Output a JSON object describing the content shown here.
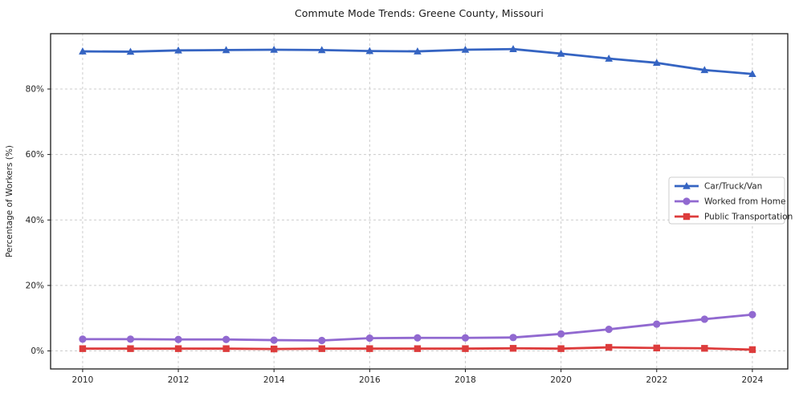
{
  "chart_data": {
    "type": "line",
    "title": "Commute Mode Trends: Greene County, Missouri",
    "xlabel": "",
    "ylabel": "Percentage of Workers (%)",
    "x": [
      2010,
      2011,
      2012,
      2013,
      2014,
      2015,
      2016,
      2017,
      2018,
      2019,
      2020,
      2021,
      2022,
      2023,
      2024
    ],
    "series": [
      {
        "name": "Car/Truck/Van",
        "color": "#3564c2",
        "marker": "triangle",
        "values": [
          91.5,
          91.4,
          91.8,
          91.9,
          92.0,
          91.9,
          91.6,
          91.5,
          92.0,
          92.2,
          90.8,
          89.3,
          88.0,
          85.8,
          84.6
        ]
      },
      {
        "name": "Worked from Home",
        "color": "#9169d0",
        "marker": "circle",
        "values": [
          3.6,
          3.6,
          3.5,
          3.5,
          3.3,
          3.2,
          3.9,
          4.0,
          4.0,
          4.1,
          5.2,
          6.6,
          8.2,
          9.7,
          11.1
        ]
      },
      {
        "name": "Public Transportation",
        "color": "#dd3c3c",
        "marker": "square",
        "values": [
          0.7,
          0.7,
          0.7,
          0.7,
          0.6,
          0.7,
          0.7,
          0.7,
          0.7,
          0.8,
          0.7,
          1.1,
          0.9,
          0.8,
          0.4
        ]
      }
    ],
    "xticks": [
      2010,
      2012,
      2014,
      2016,
      2018,
      2020,
      2022,
      2024
    ],
    "yticks": [
      "0%",
      "20%",
      "40%",
      "60%",
      "80%"
    ],
    "ytick_values": [
      0,
      20,
      40,
      60,
      80
    ],
    "xlim": [
      2009.33,
      2024.74
    ],
    "ylim": [
      -5.5,
      96.9
    ],
    "grid": true,
    "grid_style": "dashed",
    "legend_position": "right-center",
    "colors": {
      "spine": "#1a1a1a",
      "grid": "#cccccc",
      "tick_label": "#262626",
      "legend_border": "#cccccc",
      "legend_bg": "#ffffff"
    }
  }
}
